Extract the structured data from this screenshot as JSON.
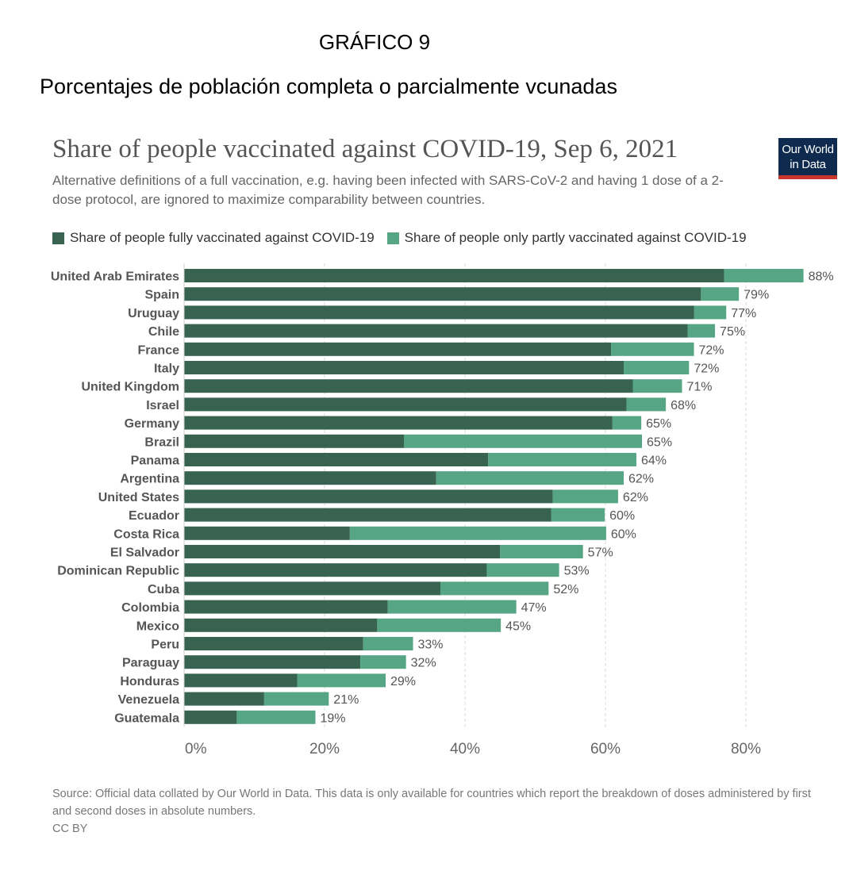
{
  "document": {
    "heading": "GRÁFICO 9",
    "subheading": "Porcentajes de población completa o parcialmente vcunadas"
  },
  "logo": {
    "line1": "Our World",
    "line2": "in Data"
  },
  "colors": {
    "fully": "#386350",
    "partly": "#56a585",
    "logo_bg": "#0e2a4e",
    "logo_accent": "#c8362d"
  },
  "chart_data": {
    "type": "bar",
    "orientation": "horizontal",
    "stacked": true,
    "title": "Share of people vaccinated against COVID-19, Sep 6, 2021",
    "subtitle": "Alternative definitions of a full vaccination, e.g. having been infected with SARS-CoV-2 and having 1 dose of a 2-dose protocol, are ignored to maximize comparability between countries.",
    "legend_position": "top-left",
    "grid": true,
    "xlim": [
      0,
      88
    ],
    "x_ticks": [
      0,
      20,
      40,
      60,
      80
    ],
    "x_tick_labels": [
      "0%",
      "20%",
      "40%",
      "60%",
      "80%"
    ],
    "categories": [
      "United Arab Emirates",
      "Spain",
      "Uruguay",
      "Chile",
      "France",
      "Italy",
      "United Kingdom",
      "Israel",
      "Germany",
      "Brazil",
      "Panama",
      "Argentina",
      "United States",
      "Ecuador",
      "Costa Rica",
      "El Salvador",
      "Dominican Republic",
      "Cuba",
      "Colombia",
      "Mexico",
      "Peru",
      "Paraguay",
      "Honduras",
      "Venezuela",
      "Guatemala"
    ],
    "series": [
      {
        "name": "Share of people fully vaccinated against COVID-19",
        "values": [
          76.9,
          73.6,
          72.6,
          71.7,
          60.8,
          62.6,
          63.9,
          63.0,
          61.0,
          31.3,
          43.3,
          35.9,
          52.5,
          52.3,
          23.6,
          45.0,
          43.1,
          36.5,
          29.0,
          27.5,
          25.5,
          25.1,
          16.1,
          11.4,
          7.5
        ]
      },
      {
        "name": "Share of people only partly vaccinated against COVID-19",
        "values": [
          11.3,
          5.4,
          4.6,
          3.9,
          11.8,
          9.3,
          7.0,
          5.6,
          4.1,
          33.9,
          21.1,
          26.7,
          9.3,
          7.6,
          36.5,
          11.8,
          10.3,
          15.4,
          18.3,
          17.6,
          7.1,
          6.5,
          12.6,
          9.2,
          11.2
        ]
      }
    ],
    "total_labels": [
      "88%",
      "79%",
      "77%",
      "75%",
      "72%",
      "72%",
      "71%",
      "68%",
      "65%",
      "65%",
      "64%",
      "62%",
      "62%",
      "60%",
      "60%",
      "57%",
      "53%",
      "52%",
      "47%",
      "45%",
      "33%",
      "32%",
      "29%",
      "21%",
      "19%"
    ]
  },
  "source": {
    "text": "Source: Official data collated by Our World in Data. This data is only available for countries which report the breakdown of doses administered by first and second doses in absolute numbers.",
    "license": "CC BY"
  }
}
